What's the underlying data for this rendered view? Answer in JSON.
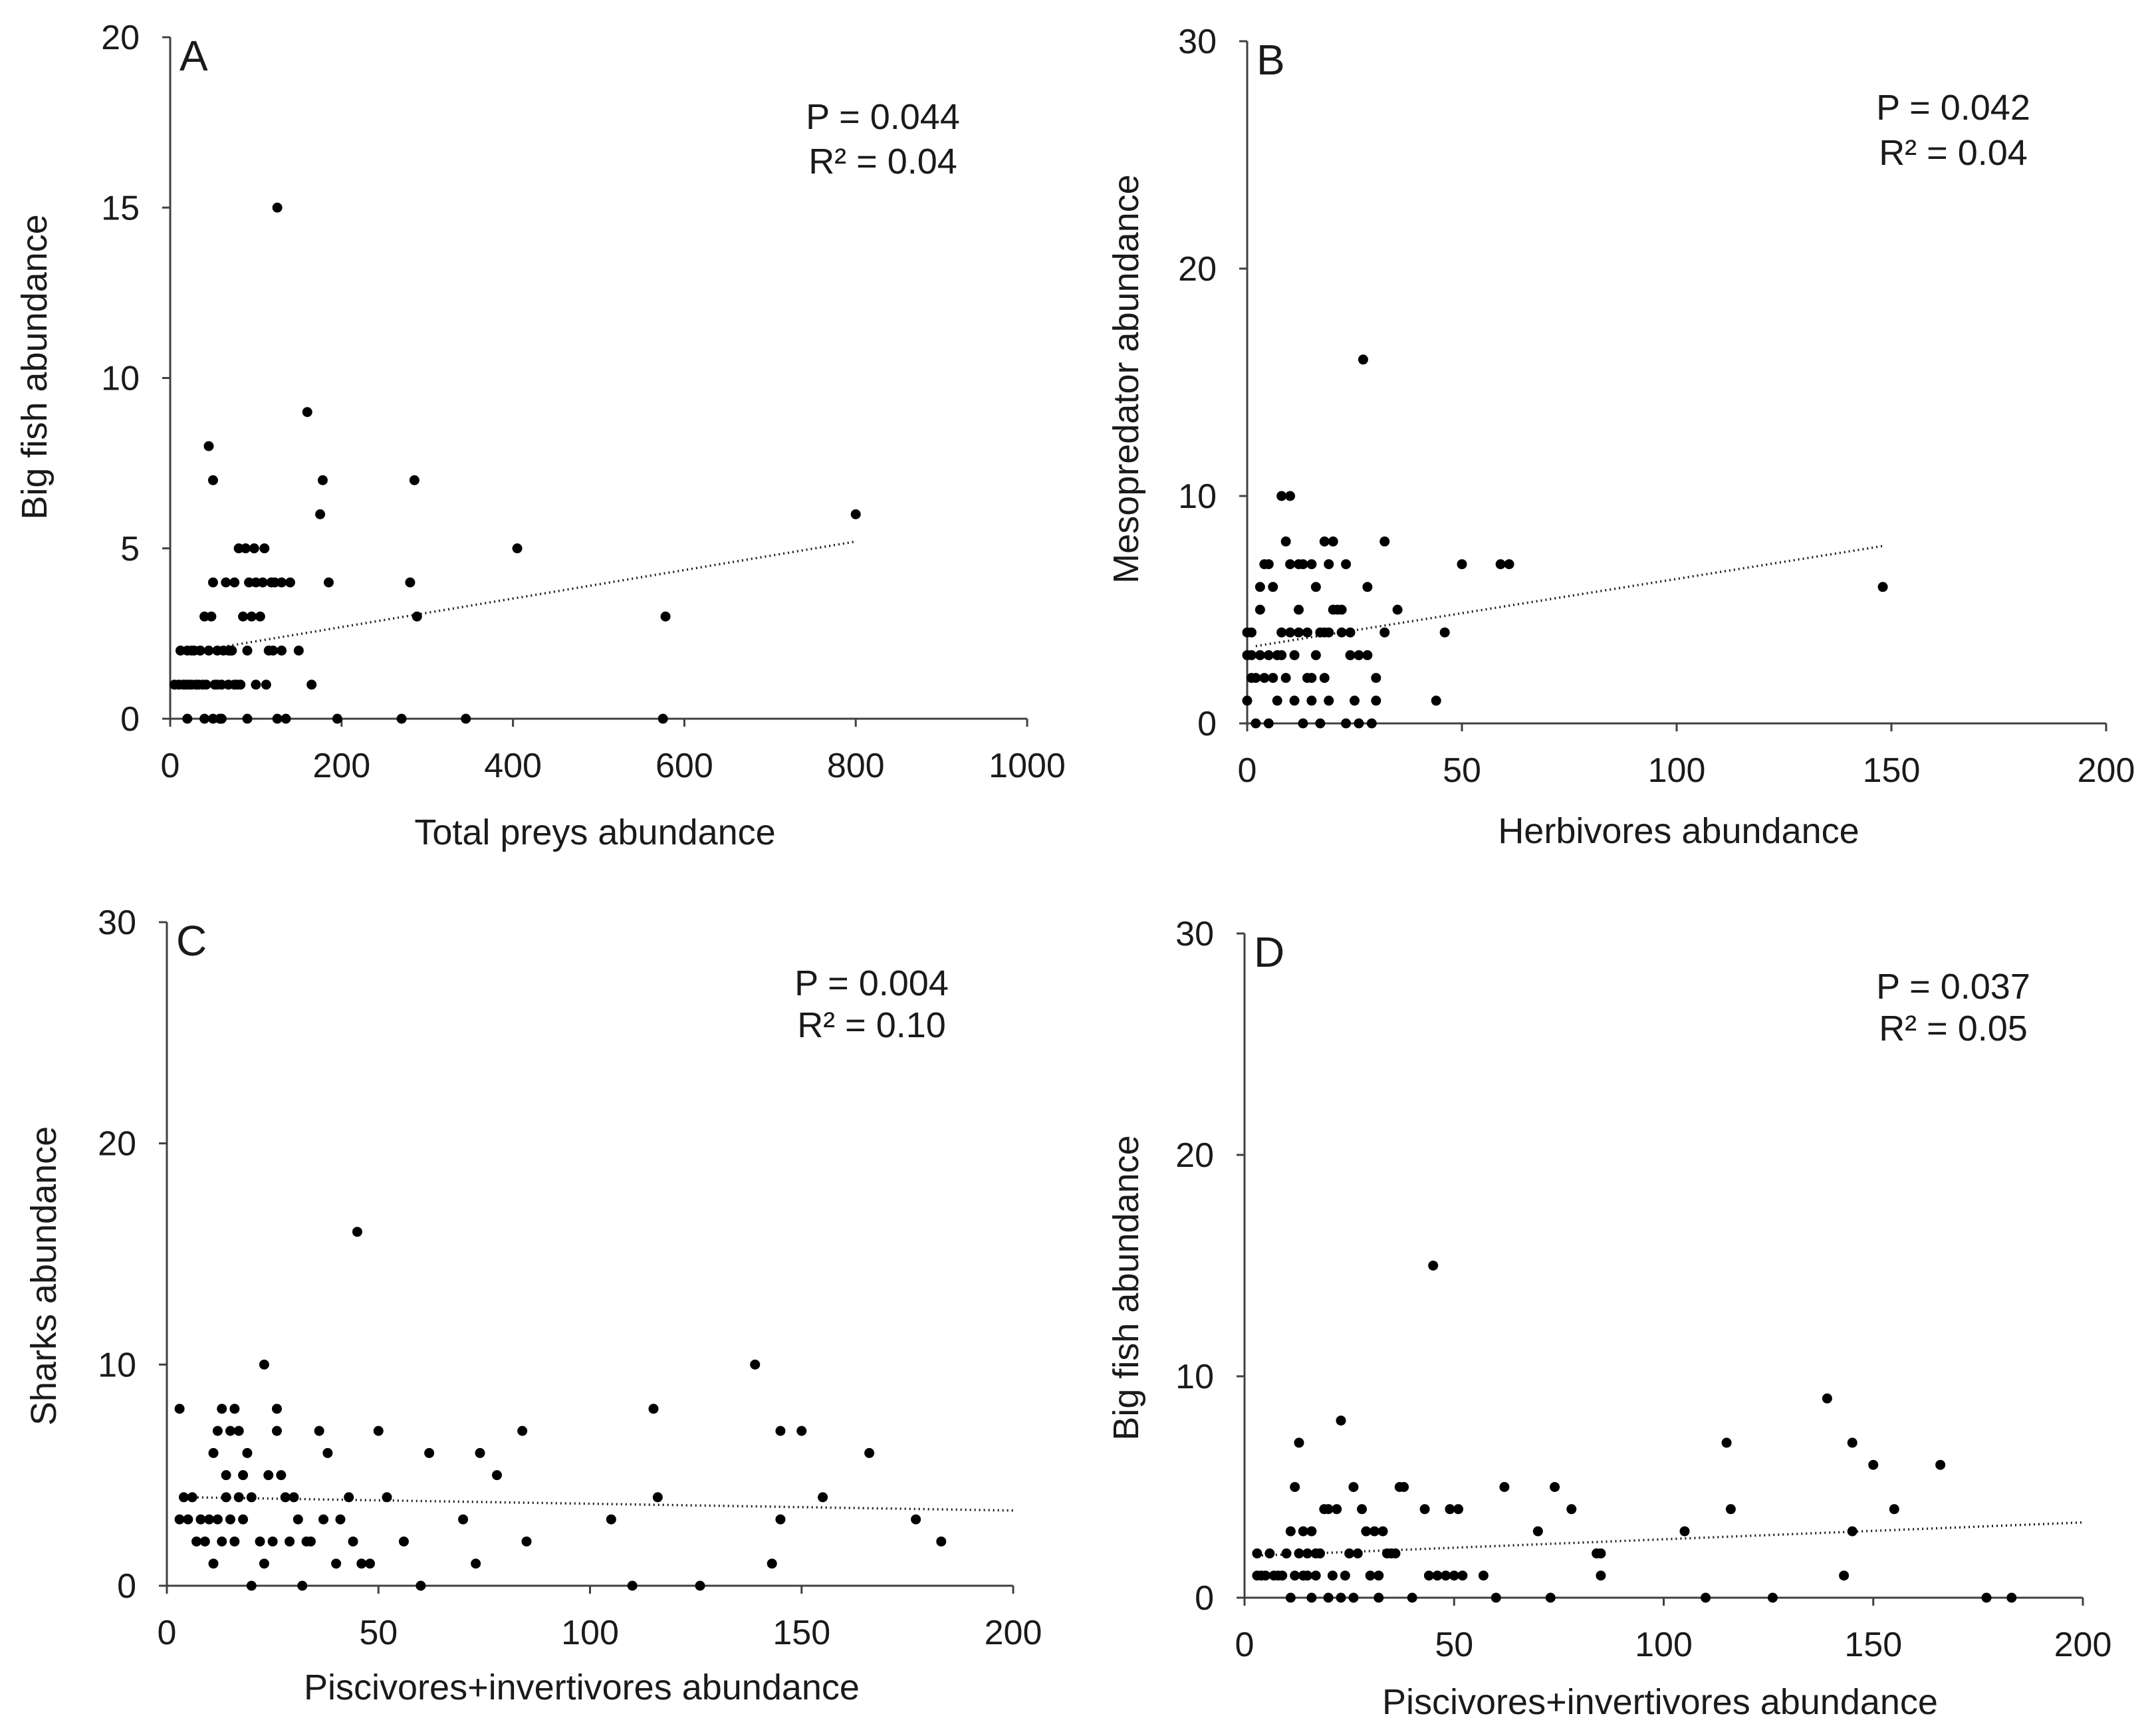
{
  "chart_data": [
    {
      "panel": "A",
      "type": "scatter",
      "xlabel": "Total preys abundance",
      "ylabel": "Big fish abundance",
      "xlim": [
        0,
        1000
      ],
      "ylim": [
        0,
        20
      ],
      "xticks": [
        0,
        200,
        400,
        600,
        800,
        1000
      ],
      "yticks": [
        0,
        5,
        10,
        15,
        20
      ],
      "stats": {
        "p": "P = 0.044",
        "r2": "R² = 0.04"
      },
      "trendline": {
        "x": [
          35,
          800
        ],
        "y": [
          2.0,
          5.2
        ]
      },
      "points": [
        [
          5,
          1
        ],
        [
          10,
          1
        ],
        [
          12,
          2
        ],
        [
          15,
          1
        ],
        [
          18,
          1
        ],
        [
          20,
          2
        ],
        [
          22,
          1
        ],
        [
          25,
          1
        ],
        [
          28,
          2
        ],
        [
          30,
          1
        ],
        [
          33,
          1
        ],
        [
          35,
          2
        ],
        [
          38,
          1
        ],
        [
          40,
          3
        ],
        [
          42,
          1
        ],
        [
          45,
          2
        ],
        [
          45,
          8
        ],
        [
          48,
          3
        ],
        [
          50,
          4
        ],
        [
          50,
          7
        ],
        [
          52,
          1
        ],
        [
          55,
          1
        ],
        [
          58,
          0
        ],
        [
          60,
          1
        ],
        [
          62,
          2
        ],
        [
          65,
          4
        ],
        [
          68,
          1
        ],
        [
          70,
          2
        ],
        [
          72,
          2
        ],
        [
          75,
          4
        ],
        [
          78,
          1
        ],
        [
          80,
          5
        ],
        [
          82,
          1
        ],
        [
          85,
          3
        ],
        [
          88,
          5
        ],
        [
          90,
          2
        ],
        [
          92,
          4
        ],
        [
          95,
          3
        ],
        [
          98,
          5
        ],
        [
          100,
          1
        ],
        [
          105,
          3
        ],
        [
          108,
          4
        ],
        [
          110,
          5
        ],
        [
          112,
          1
        ],
        [
          115,
          2
        ],
        [
          118,
          4
        ],
        [
          120,
          2
        ],
        [
          122,
          4
        ],
        [
          125,
          0
        ],
        [
          125,
          15
        ],
        [
          130,
          4
        ],
        [
          135,
          0
        ],
        [
          140,
          4
        ],
        [
          150,
          2
        ],
        [
          160,
          9
        ],
        [
          165,
          1
        ],
        [
          175,
          6
        ],
        [
          178,
          7
        ],
        [
          185,
          4
        ],
        [
          195,
          0
        ],
        [
          270,
          0
        ],
        [
          280,
          4
        ],
        [
          285,
          7
        ],
        [
          288,
          3
        ],
        [
          345,
          0
        ],
        [
          405,
          5
        ],
        [
          575,
          0
        ],
        [
          578,
          3
        ],
        [
          800,
          6
        ],
        [
          20,
          0
        ],
        [
          40,
          0
        ],
        [
          50,
          0
        ],
        [
          60,
          0
        ],
        [
          90,
          0
        ],
        [
          25,
          2
        ],
        [
          35,
          2
        ],
        [
          55,
          2
        ],
        [
          68,
          2
        ],
        [
          75,
          1
        ],
        [
          100,
          4
        ],
        [
          130,
          2
        ]
      ]
    },
    {
      "panel": "B",
      "type": "scatter",
      "xlabel": "Herbivores abundance",
      "ylabel": "Mesopredator abundance",
      "xlim": [
        0,
        200
      ],
      "ylim": [
        0,
        30
      ],
      "xticks": [
        0,
        50,
        100,
        150,
        200
      ],
      "yticks": [
        0,
        10,
        20,
        30
      ],
      "stats": {
        "p": "P = 0.042",
        "r2": "R² = 0.04"
      },
      "trendline": {
        "x": [
          2,
          148
        ],
        "y": [
          3.4,
          7.8
        ]
      },
      "points": [
        [
          0,
          1
        ],
        [
          0,
          3
        ],
        [
          0,
          4
        ],
        [
          1,
          2
        ],
        [
          1,
          3
        ],
        [
          2,
          2
        ],
        [
          2,
          0
        ],
        [
          3,
          3
        ],
        [
          3,
          5
        ],
        [
          3,
          6
        ],
        [
          4,
          7
        ],
        [
          4,
          2
        ],
        [
          5,
          0
        ],
        [
          5,
          3
        ],
        [
          5,
          7
        ],
        [
          6,
          2
        ],
        [
          6,
          6
        ],
        [
          7,
          3
        ],
        [
          7,
          1
        ],
        [
          8,
          10
        ],
        [
          8,
          4
        ],
        [
          9,
          2
        ],
        [
          9,
          8
        ],
        [
          10,
          4
        ],
        [
          10,
          10
        ],
        [
          10,
          7
        ],
        [
          11,
          1
        ],
        [
          11,
          3
        ],
        [
          12,
          5
        ],
        [
          12,
          4
        ],
        [
          13,
          7
        ],
        [
          13,
          0
        ],
        [
          14,
          2
        ],
        [
          14,
          4
        ],
        [
          15,
          1
        ],
        [
          15,
          7
        ],
        [
          16,
          6
        ],
        [
          16,
          3
        ],
        [
          17,
          4
        ],
        [
          17,
          0
        ],
        [
          18,
          8
        ],
        [
          18,
          2
        ],
        [
          19,
          4
        ],
        [
          19,
          1
        ],
        [
          19,
          7
        ],
        [
          20,
          5
        ],
        [
          20,
          8
        ],
        [
          21,
          5
        ],
        [
          22,
          4
        ],
        [
          23,
          0
        ],
        [
          23,
          7
        ],
        [
          24,
          3
        ],
        [
          25,
          1
        ],
        [
          26,
          0
        ],
        [
          26,
          3
        ],
        [
          27,
          16
        ],
        [
          28,
          6
        ],
        [
          28,
          3
        ],
        [
          29,
          0
        ],
        [
          30,
          1
        ],
        [
          32,
          8
        ],
        [
          32,
          4
        ],
        [
          35,
          5
        ],
        [
          44,
          1
        ],
        [
          46,
          4
        ],
        [
          50,
          7
        ],
        [
          59,
          7
        ],
        [
          61,
          7
        ],
        [
          148,
          6
        ],
        [
          1,
          4
        ],
        [
          8,
          3
        ],
        [
          12,
          7
        ],
        [
          15,
          2
        ],
        [
          18,
          4
        ],
        [
          22,
          5
        ],
        [
          24,
          4
        ],
        [
          30,
          2
        ]
      ]
    },
    {
      "panel": "C",
      "type": "scatter",
      "xlabel": "Piscivores+invertivores abundance",
      "ylabel": "Sharks abundance",
      "xlim": [
        0,
        200
      ],
      "ylim": [
        0,
        30
      ],
      "xticks": [
        0,
        50,
        100,
        150,
        200
      ],
      "yticks": [
        0,
        10,
        20,
        30
      ],
      "stats": {
        "p": "P = 0.004",
        "r2": "R² = 0.10"
      },
      "trendline": {
        "x": [
          5,
          200
        ],
        "y": [
          4.0,
          3.4
        ]
      },
      "points": [
        [
          3,
          8
        ],
        [
          3,
          3
        ],
        [
          4,
          4
        ],
        [
          5,
          3
        ],
        [
          6,
          4
        ],
        [
          7,
          2
        ],
        [
          8,
          3
        ],
        [
          9,
          2
        ],
        [
          10,
          3
        ],
        [
          11,
          1
        ],
        [
          11,
          6
        ],
        [
          12,
          3
        ],
        [
          12,
          7
        ],
        [
          13,
          2
        ],
        [
          13,
          8
        ],
        [
          14,
          5
        ],
        [
          14,
          4
        ],
        [
          15,
          7
        ],
        [
          15,
          3
        ],
        [
          16,
          8
        ],
        [
          16,
          2
        ],
        [
          17,
          7
        ],
        [
          17,
          4
        ],
        [
          18,
          5
        ],
        [
          18,
          3
        ],
        [
          19,
          6
        ],
        [
          20,
          0
        ],
        [
          20,
          4
        ],
        [
          22,
          2
        ],
        [
          23,
          1
        ],
        [
          23,
          10
        ],
        [
          24,
          5
        ],
        [
          25,
          2
        ],
        [
          26,
          8
        ],
        [
          26,
          7
        ],
        [
          27,
          5
        ],
        [
          28,
          4
        ],
        [
          29,
          2
        ],
        [
          30,
          4
        ],
        [
          31,
          3
        ],
        [
          32,
          0
        ],
        [
          33,
          2
        ],
        [
          34,
          2
        ],
        [
          36,
          7
        ],
        [
          37,
          3
        ],
        [
          38,
          6
        ],
        [
          40,
          1
        ],
        [
          41,
          3
        ],
        [
          43,
          4
        ],
        [
          44,
          2
        ],
        [
          45,
          16
        ],
        [
          46,
          1
        ],
        [
          48,
          1
        ],
        [
          50,
          7
        ],
        [
          52,
          4
        ],
        [
          56,
          2
        ],
        [
          60,
          0
        ],
        [
          62,
          6
        ],
        [
          70,
          3
        ],
        [
          73,
          1
        ],
        [
          74,
          6
        ],
        [
          78,
          5
        ],
        [
          84,
          7
        ],
        [
          85,
          2
        ],
        [
          105,
          3
        ],
        [
          110,
          0
        ],
        [
          115,
          8
        ],
        [
          116,
          4
        ],
        [
          126,
          0
        ],
        [
          139,
          10
        ],
        [
          143,
          1
        ],
        [
          145,
          7
        ],
        [
          145,
          3
        ],
        [
          150,
          7
        ],
        [
          155,
          4
        ],
        [
          166,
          6
        ],
        [
          177,
          3
        ],
        [
          183,
          2
        ]
      ]
    },
    {
      "panel": "D",
      "type": "scatter",
      "xlabel": "Piscivores+invertivores abundance",
      "ylabel": "Big fish abundance",
      "xlim": [
        0,
        200
      ],
      "ylim": [
        0,
        30
      ],
      "xticks": [
        0,
        50,
        100,
        150,
        200
      ],
      "yticks": [
        0,
        10,
        20,
        30
      ],
      "stats": {
        "p": "P = 0.037",
        "r2": "R² = 0.05"
      },
      "trendline": {
        "x": [
          3,
          200
        ],
        "y": [
          1.9,
          3.4
        ]
      },
      "points": [
        [
          3,
          1
        ],
        [
          3,
          2
        ],
        [
          4,
          1
        ],
        [
          5,
          1
        ],
        [
          6,
          2
        ],
        [
          7,
          1
        ],
        [
          8,
          1
        ],
        [
          9,
          1
        ],
        [
          10,
          2
        ],
        [
          11,
          3
        ],
        [
          11,
          0
        ],
        [
          12,
          5
        ],
        [
          12,
          1
        ],
        [
          13,
          7
        ],
        [
          13,
          2
        ],
        [
          14,
          3
        ],
        [
          14,
          1
        ],
        [
          15,
          2
        ],
        [
          15,
          1
        ],
        [
          16,
          0
        ],
        [
          16,
          3
        ],
        [
          17,
          2
        ],
        [
          17,
          1
        ],
        [
          18,
          2
        ],
        [
          19,
          4
        ],
        [
          20,
          0
        ],
        [
          20,
          4
        ],
        [
          21,
          1
        ],
        [
          22,
          4
        ],
        [
          23,
          0
        ],
        [
          23,
          8
        ],
        [
          24,
          1
        ],
        [
          25,
          2
        ],
        [
          26,
          5
        ],
        [
          26,
          0
        ],
        [
          27,
          2
        ],
        [
          28,
          4
        ],
        [
          29,
          3
        ],
        [
          30,
          1
        ],
        [
          31,
          3
        ],
        [
          32,
          1
        ],
        [
          32,
          0
        ],
        [
          33,
          3
        ],
        [
          34,
          2
        ],
        [
          35,
          2
        ],
        [
          36,
          2
        ],
        [
          37,
          5
        ],
        [
          38,
          5
        ],
        [
          40,
          0
        ],
        [
          43,
          4
        ],
        [
          44,
          1
        ],
        [
          45,
          15
        ],
        [
          46,
          1
        ],
        [
          48,
          1
        ],
        [
          49,
          4
        ],
        [
          50,
          1
        ],
        [
          51,
          4
        ],
        [
          52,
          1
        ],
        [
          57,
          1
        ],
        [
          60,
          0
        ],
        [
          62,
          5
        ],
        [
          70,
          3
        ],
        [
          73,
          0
        ],
        [
          74,
          5
        ],
        [
          78,
          4
        ],
        [
          84,
          2
        ],
        [
          85,
          2
        ],
        [
          85,
          1
        ],
        [
          105,
          3
        ],
        [
          110,
          0
        ],
        [
          115,
          7
        ],
        [
          116,
          4
        ],
        [
          126,
          0
        ],
        [
          139,
          9
        ],
        [
          143,
          1
        ],
        [
          145,
          7
        ],
        [
          145,
          3
        ],
        [
          150,
          6
        ],
        [
          155,
          4
        ],
        [
          166,
          6
        ],
        [
          177,
          0
        ],
        [
          183,
          0
        ]
      ]
    }
  ]
}
